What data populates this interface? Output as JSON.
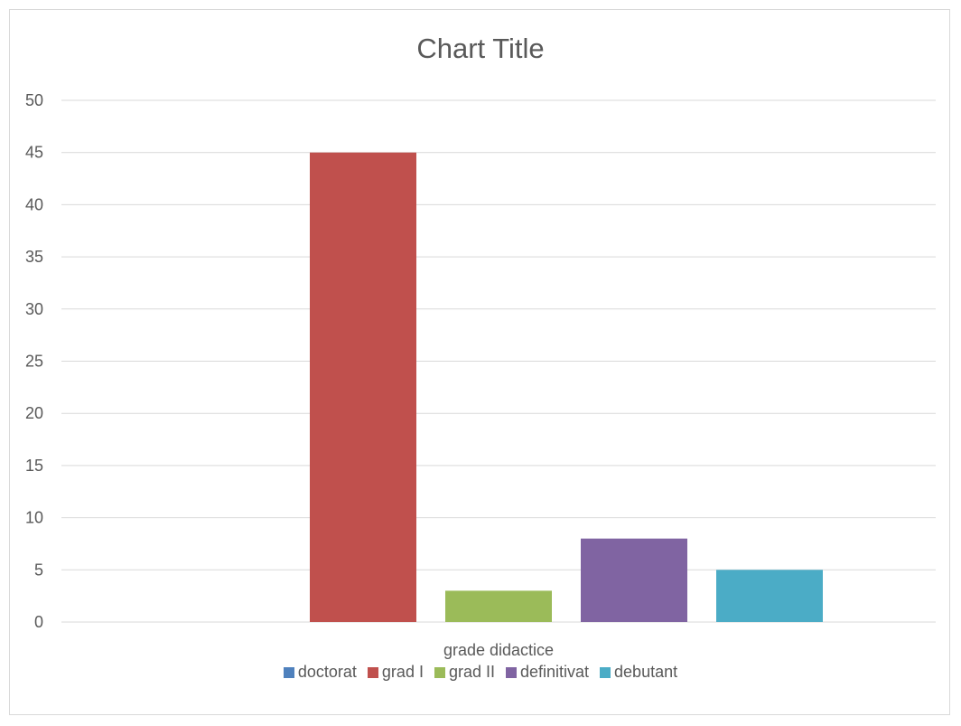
{
  "chart_data": {
    "type": "bar",
    "title": "Chart Title",
    "categories": [
      "grade didactice"
    ],
    "series": [
      {
        "name": "doctorat",
        "values": [
          0
        ],
        "color": "#4F81BD"
      },
      {
        "name": "grad I",
        "values": [
          45
        ],
        "color": "#C0504D"
      },
      {
        "name": "grad II",
        "values": [
          3
        ],
        "color": "#9BBB59"
      },
      {
        "name": "definitivat",
        "values": [
          8
        ],
        "color": "#8064A2"
      },
      {
        "name": "debutant",
        "values": [
          5
        ],
        "color": "#4BACC6"
      }
    ],
    "ylim": [
      0,
      50
    ],
    "yticks": [
      0,
      5,
      10,
      15,
      20,
      25,
      30,
      35,
      40,
      45,
      50
    ],
    "grid": true,
    "legend_position": "bottom"
  }
}
